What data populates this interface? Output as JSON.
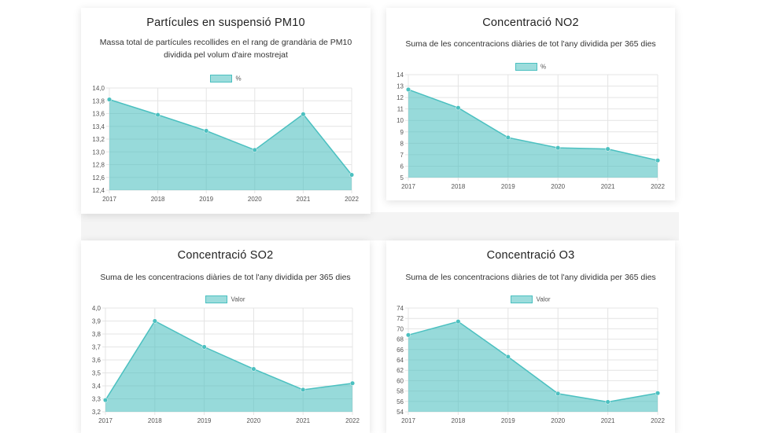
{
  "colors": {
    "area_fill": "#4bc0c0",
    "line": "#4bc0c0",
    "grid": "#e4e4e4"
  },
  "chart_data": [
    {
      "type": "area",
      "title": "Partícules en suspensió PM10",
      "subtitle": "Massa total de partícules recollides en el rang de grandària de PM10 dividida pel volum d'aire mostrejat",
      "legend": "%",
      "categories": [
        "2017",
        "2018",
        "2019",
        "2020",
        "2021",
        "2022"
      ],
      "values": [
        13.82,
        13.58,
        13.33,
        13.03,
        13.59,
        12.64
      ],
      "ylim": [
        12.4,
        14.0
      ],
      "yticks": [
        "12,4",
        "12,6",
        "12,8",
        "13,0",
        "13,2",
        "13,4",
        "13,6",
        "13,8",
        "14,0"
      ],
      "legend_position": "top"
    },
    {
      "type": "area",
      "title": "Concentració NO2",
      "subtitle": "Suma de les concentracions diàries de tot l'any dividida per 365 dies",
      "legend": "%",
      "categories": [
        "2017",
        "2018",
        "2019",
        "2020",
        "2021",
        "2022"
      ],
      "values": [
        12.7,
        11.1,
        8.5,
        7.6,
        7.5,
        6.5
      ],
      "ylim": [
        5,
        14
      ],
      "yticks": [
        "5",
        "6",
        "7",
        "8",
        "9",
        "10",
        "11",
        "12",
        "13",
        "14"
      ],
      "legend_position": "top"
    },
    {
      "type": "area",
      "title": "Concentració SO2",
      "subtitle": "Suma de les concentracions diàries de tot l'any dividida per 365 dies",
      "legend": "Valor",
      "categories": [
        "2017",
        "2018",
        "2019",
        "2020",
        "2021",
        "2022"
      ],
      "values": [
        3.29,
        3.9,
        3.7,
        3.53,
        3.37,
        3.42
      ],
      "ylim": [
        3.2,
        4.0
      ],
      "yticks": [
        "3,2",
        "3,3",
        "3,4",
        "3,5",
        "3,6",
        "3,7",
        "3,8",
        "3,9",
        "4,0"
      ],
      "legend_position": "top"
    },
    {
      "type": "area",
      "title": "Concentració O3",
      "subtitle": "Suma de les concentracions diàries de tot l'any dividida per 365 dies",
      "legend": "Valor",
      "categories": [
        "2017",
        "2018",
        "2019",
        "2020",
        "2021",
        "2022"
      ],
      "values": [
        68.8,
        71.4,
        64.6,
        57.5,
        55.9,
        57.6
      ],
      "ylim": [
        54,
        74
      ],
      "yticks": [
        "54",
        "56",
        "58",
        "60",
        "62",
        "64",
        "66",
        "68",
        "70",
        "72",
        "74"
      ],
      "legend_position": "top"
    }
  ]
}
